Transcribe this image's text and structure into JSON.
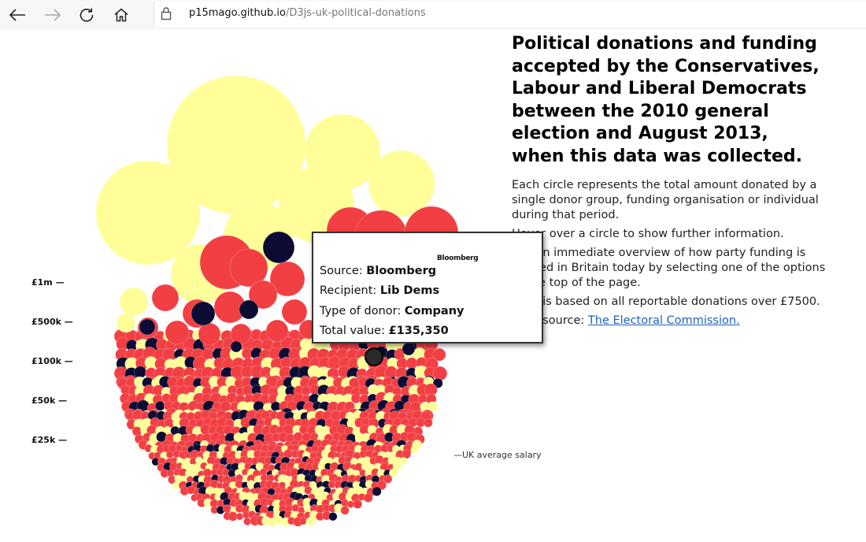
{
  "browser": {
    "url_host": "p15mago.github.io",
    "url_path": "/D3js-uk-political-donations",
    "icons": [
      "back-arrow-icon",
      "forward-arrow-icon",
      "refresh-icon",
      "home-icon",
      "lock-icon"
    ]
  },
  "scale": {
    "labels": [
      "£1m —",
      "£500k —",
      "£100k —",
      "£50k —",
      "£25k —"
    ],
    "salary_note": "—UK average salary"
  },
  "article": {
    "title": "Political donations and funding accepted by the Conservatives, Labour and Liberal Democrats between the 2010 general election and August 2013, when this data was collected.",
    "paragraphs": [
      "Each circle represents the total amount donated by a single donor group, funding organisation or individual during that period.",
      "Hover over a circle to show further information.",
      "Get an immediate overview of how party funding is divided in Britain today by selecting one of the options at the top of the page.",
      "Data is based on all reportable donations over £7500."
    ],
    "source_prefix": "Data source: ",
    "source_link": "The Electoral Commission."
  },
  "tooltip": {
    "logo_text": "Bloomberg",
    "source_label": "Source: ",
    "source_value": "Bloomberg",
    "recipient_label": "Recipient: ",
    "recipient_value": "Lib Dems",
    "type_label": "Type of donor: ",
    "type_value": "Company",
    "total_label": "Total value: ",
    "total_value": "£135,350"
  },
  "colors": {
    "conservative": "#FFFF99",
    "labour": "#F23F44",
    "libdem": "#0B0B33",
    "highlight": "#2a2a2a"
  }
}
